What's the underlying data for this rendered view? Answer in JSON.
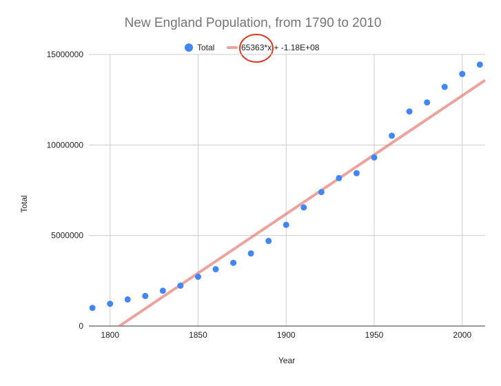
{
  "chart_data": {
    "type": "scatter",
    "title": "New England Population, from 1790 to 2010",
    "xlabel": "Year",
    "ylabel": "Total",
    "xlim": [
      1788,
      2013
    ],
    "ylim": [
      0,
      15000000
    ],
    "x_ticks": [
      "1800",
      "1850",
      "1900",
      "1950",
      "2000"
    ],
    "x_tick_values": [
      1800,
      1850,
      1900,
      1950,
      2000
    ],
    "y_ticks": [
      "0",
      "5000000",
      "10000000",
      "15000000"
    ],
    "y_tick_values": [
      0,
      5000000,
      10000000,
      15000000
    ],
    "grid": true,
    "legend_position": "top",
    "series": [
      {
        "name": "Total",
        "color": "#4285f4",
        "x": [
          1790,
          1800,
          1810,
          1820,
          1830,
          1840,
          1850,
          1860,
          1870,
          1880,
          1890,
          1900,
          1910,
          1920,
          1930,
          1940,
          1950,
          1960,
          1970,
          1980,
          1990,
          2000,
          2010
        ],
        "y": [
          1000000,
          1230000,
          1470000,
          1660000,
          1950000,
          2230000,
          2720000,
          3140000,
          3490000,
          4010000,
          4700000,
          5590000,
          6550000,
          7400000,
          8170000,
          8440000,
          9310000,
          10510000,
          11850000,
          12350000,
          13210000,
          13920000,
          14440000
        ]
      }
    ],
    "trendline": {
      "label": "65363*x + -1.18E+08",
      "slope": 65363,
      "intercept": -118000000,
      "color": "#e67c73"
    },
    "annotation": {
      "type": "circle",
      "color": "#d9381e",
      "target": "trendline-slope"
    }
  }
}
